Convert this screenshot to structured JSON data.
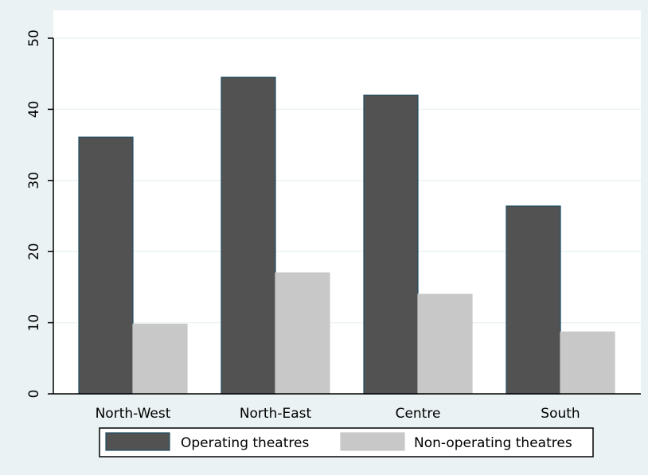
{
  "chart_data": {
    "type": "bar",
    "title": "",
    "xlabel": "",
    "ylabel": "",
    "categories": [
      "North-West",
      "North-East",
      "Centre",
      "South"
    ],
    "series": [
      {
        "name": "Operating theatres",
        "values": [
          36.1,
          44.5,
          42.0,
          26.4
        ],
        "color": "#525252",
        "edge": "#1f4e63"
      },
      {
        "name": "Non-operating theatres",
        "values": [
          9.8,
          17.0,
          14.0,
          8.7
        ],
        "color": "#c8c8c8",
        "edge": "#c8c8c8"
      }
    ],
    "ylim": [
      0,
      50
    ],
    "yticks": [
      0,
      10,
      20,
      30,
      40,
      50
    ],
    "grid": true,
    "legend_position": "bottom",
    "colors": {
      "background": "#eaf2f3",
      "plot_area": "#ffffff",
      "grid": "#eaf2f3",
      "axis": "#000000"
    }
  }
}
